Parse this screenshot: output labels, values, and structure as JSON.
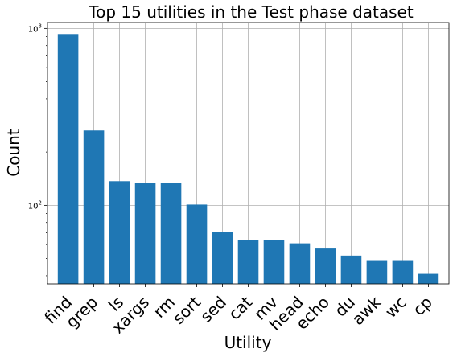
{
  "chart_data": {
    "type": "bar",
    "title": "Top 15 utilities in the Test phase dataset",
    "xlabel": "Utility",
    "ylabel": "Count",
    "yscale": "log",
    "ylim": [
      36,
      1080
    ],
    "yticks": [
      {
        "value": 100,
        "base": "10",
        "exp": "2"
      },
      {
        "value": 1000,
        "base": "10",
        "exp": "3"
      }
    ],
    "grid": true,
    "bar_color": "#1f77b4",
    "grid_color": "#b0b0b0",
    "categories": [
      "find",
      "grep",
      "ls",
      "xargs",
      "rm",
      "sort",
      "sed",
      "cat",
      "mv",
      "head",
      "echo",
      "du",
      "awk",
      "wc",
      "cp"
    ],
    "values": [
      930,
      265,
      137,
      134,
      134,
      101,
      71,
      64,
      64,
      61,
      57,
      52,
      49,
      49,
      41
    ]
  }
}
